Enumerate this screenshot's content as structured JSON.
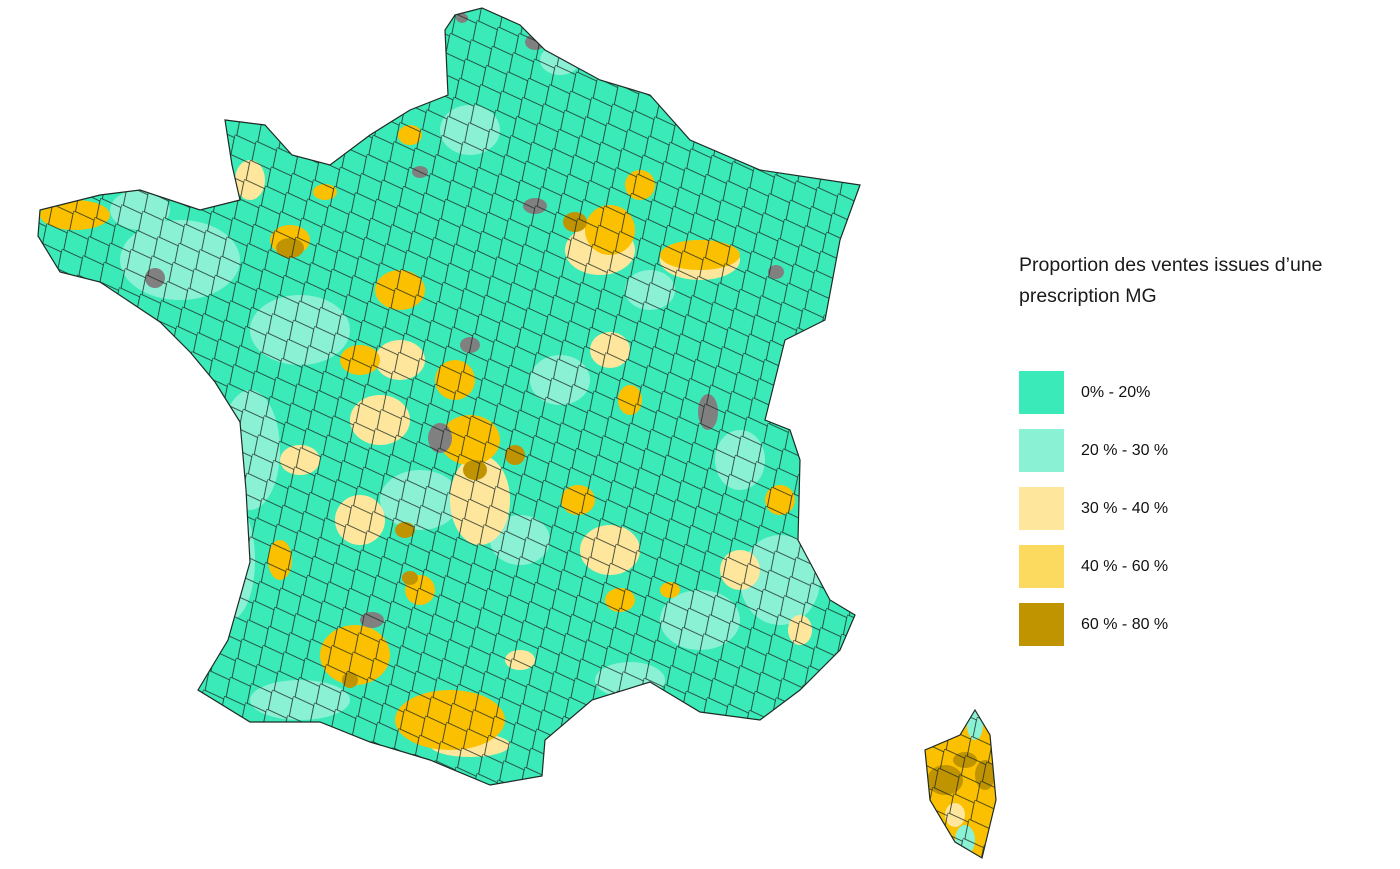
{
  "legend": {
    "title": "Proportion des ventes issues d’une prescription MG",
    "items": [
      {
        "label": "0% - 20%",
        "color": "#3aeab8"
      },
      {
        "label": "20 % - 30 %",
        "color": "#8af1d4"
      },
      {
        "label": "30 % - 40 %",
        "color": "#fee79c"
      },
      {
        "label": "40 % - 60 %",
        "color": "#fcd95f"
      },
      {
        "label": "60 % - 80 %",
        "color": "#c09400"
      }
    ]
  },
  "map_colors": {
    "low": "#3aeab8",
    "low_mid": "#8af1d4",
    "mid": "#fee79c",
    "high": "#fbc000",
    "very_high": "#c09400",
    "no_data": "#808080",
    "border": "#1e2a24"
  }
}
